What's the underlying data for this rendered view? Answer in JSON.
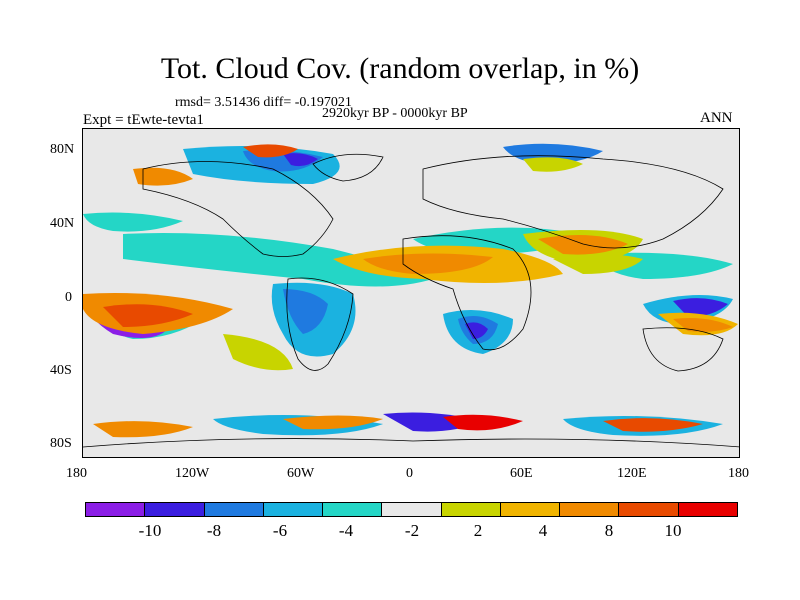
{
  "title": "Tot. Cloud Cov. (random overlap, in %)",
  "stats": "rmsd= 3.51436 diff= -0.197021",
  "period": "2920kyr BP - 0000kyr BP",
  "experiment": "Expt = tEwte-tevta1",
  "season": "ANN",
  "map": {
    "projection": "cylindrical equidistant",
    "lat_range": [
      -90,
      90
    ],
    "lon_range": [
      -180,
      180
    ],
    "lat_ticks": [
      "80N",
      "40N",
      "0",
      "40S",
      "80S"
    ],
    "lon_ticks": [
      "180",
      "120W",
      "60W",
      "0",
      "60E",
      "120E",
      "180"
    ],
    "background_color": "#e8e8e8",
    "coastline_color": "#000000"
  },
  "colorbar": {
    "colors": [
      "#8b1ee6",
      "#3b1ee0",
      "#1f7ae0",
      "#1bb2e0",
      "#24d6c6",
      "#e8e8e8",
      "#c8d400",
      "#f0b400",
      "#f08a00",
      "#e84a00",
      "#e80000"
    ],
    "labels": [
      "-10",
      "-8",
      "-6",
      "-4",
      "-2",
      "2",
      "4",
      "8",
      "10"
    ]
  }
}
